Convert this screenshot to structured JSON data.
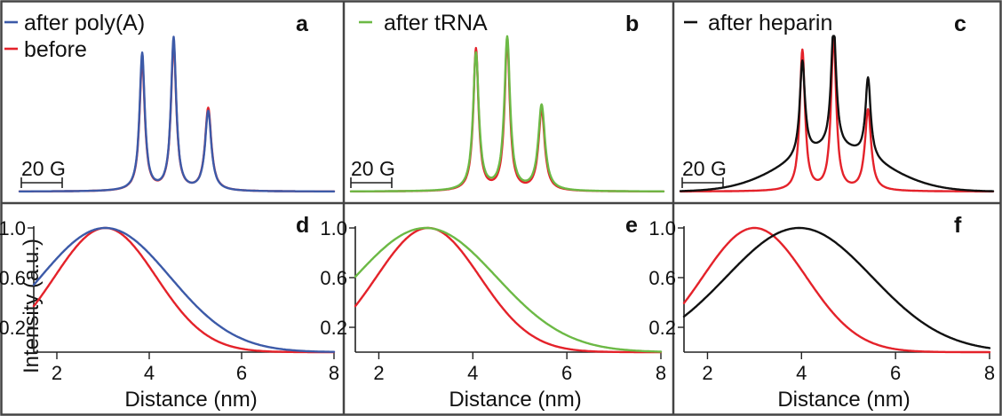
{
  "colors": {
    "blue": "#3c5aa8",
    "red": "#e4222a",
    "green": "#6cb945",
    "black": "#111111"
  },
  "scale_bar_label": "20 G",
  "x_axis_title": "Distance (nm)",
  "y_axis_title": "Intensity (a.u.)",
  "chart_data": [
    {
      "panel": "a",
      "type": "line",
      "title": "",
      "xlabel": "",
      "ylabel": "",
      "y_units": "normalized",
      "x_units": "field position (scale bar 20 G)",
      "series": [
        {
          "name": "after poly(A)",
          "color": "blue",
          "baseline": 0.0,
          "peaks": [
            {
              "x": 0.39,
              "h": 0.9,
              "w": 0.01
            },
            {
              "x": 0.49,
              "h": 1.0,
              "w": 0.01
            },
            {
              "x": 0.6,
              "h": 0.52,
              "w": 0.012
            }
          ],
          "shoulder": {
            "x": 0.42,
            "h": 0.0,
            "w": 0.1
          }
        },
        {
          "name": "before",
          "color": "red",
          "baseline": 0.0,
          "peaks": [
            {
              "x": 0.39,
              "h": 0.86,
              "w": 0.01
            },
            {
              "x": 0.49,
              "h": 0.97,
              "w": 0.01
            },
            {
              "x": 0.6,
              "h": 0.54,
              "w": 0.012
            }
          ],
          "shoulder": {
            "x": 0.42,
            "h": 0.0,
            "w": 0.1
          }
        }
      ]
    },
    {
      "panel": "b",
      "type": "line",
      "title": "",
      "xlabel": "",
      "ylabel": "",
      "series": [
        {
          "name": "after tRNA",
          "color": "green",
          "baseline": 0.0,
          "peaks": [
            {
              "x": 0.4,
              "h": 0.9,
              "w": 0.011
            },
            {
              "x": 0.5,
              "h": 1.0,
              "w": 0.011
            },
            {
              "x": 0.61,
              "h": 0.56,
              "w": 0.013
            }
          ],
          "shoulder": {
            "x": 0.45,
            "h": 0.0,
            "w": 0.1
          }
        },
        {
          "name": "before",
          "color": "red",
          "baseline": 0.0,
          "peaks": [
            {
              "x": 0.4,
              "h": 0.93,
              "w": 0.01
            },
            {
              "x": 0.5,
              "h": 0.98,
              "w": 0.01
            },
            {
              "x": 0.61,
              "h": 0.53,
              "w": 0.012
            }
          ],
          "shoulder": {
            "x": 0.45,
            "h": 0.0,
            "w": 0.1
          }
        }
      ]
    },
    {
      "panel": "c",
      "type": "line",
      "title": "",
      "xlabel": "",
      "ylabel": "",
      "series": [
        {
          "name": "after heparin",
          "color": "black",
          "baseline": 0.0,
          "peaks": [
            {
              "x": 0.39,
              "h": 0.62,
              "w": 0.01
            },
            {
              "x": 0.49,
              "h": 0.8,
              "w": 0.01
            },
            {
              "x": 0.6,
              "h": 0.52,
              "w": 0.01
            }
          ],
          "shoulder": {
            "x": 0.49,
            "h": 0.28,
            "w": 0.16
          }
        },
        {
          "name": "before",
          "color": "red",
          "baseline": 0.0,
          "peaks": [
            {
              "x": 0.39,
              "h": 0.92,
              "w": 0.01
            },
            {
              "x": 0.49,
              "h": 1.0,
              "w": 0.01
            },
            {
              "x": 0.6,
              "h": 0.53,
              "w": 0.012
            }
          ],
          "shoulder": {
            "x": 0.49,
            "h": 0.0,
            "w": 0.1
          }
        }
      ]
    },
    {
      "panel": "d",
      "type": "line",
      "title": "",
      "xlabel": "Distance (nm)",
      "ylabel": "Intensity (a.u.)",
      "xlim": [
        1.5,
        8
      ],
      "ylim": [
        0,
        1.0
      ],
      "xticks": [
        2,
        4,
        6,
        8
      ],
      "yticks": [
        0.2,
        0.6,
        1.0
      ],
      "series": [
        {
          "name": "after poly(A)",
          "color": "blue",
          "gaussian": {
            "mu": 3.05,
            "sigma": 1.4
          }
        },
        {
          "name": "before",
          "color": "red",
          "gaussian": {
            "mu": 3.05,
            "sigma": 1.1
          }
        }
      ]
    },
    {
      "panel": "e",
      "type": "line",
      "title": "",
      "xlabel": "Distance (nm)",
      "ylabel": "",
      "xlim": [
        1.5,
        8
      ],
      "ylim": [
        0,
        1.0
      ],
      "xticks": [
        2,
        4,
        6,
        8
      ],
      "yticks": [
        0.2,
        0.6,
        1.0
      ],
      "series": [
        {
          "name": "after tRNA",
          "color": "green",
          "gaussian": {
            "mu": 3.0,
            "sigma": 1.5
          }
        },
        {
          "name": "before",
          "color": "red",
          "gaussian": {
            "mu": 3.05,
            "sigma": 1.1
          }
        }
      ]
    },
    {
      "panel": "f",
      "type": "line",
      "title": "",
      "xlabel": "Distance (nm)",
      "ylabel": "",
      "xlim": [
        1.5,
        8
      ],
      "ylim": [
        0,
        1.0
      ],
      "xticks": [
        2,
        4,
        6,
        8
      ],
      "yticks": [
        0.2,
        0.6,
        1.0
      ],
      "series": [
        {
          "name": "after heparin",
          "color": "black",
          "gaussian": {
            "mu": 3.95,
            "sigma": 1.55
          }
        },
        {
          "name": "before",
          "color": "red",
          "gaussian": {
            "mu": 3.0,
            "sigma": 1.1
          }
        }
      ]
    }
  ]
}
